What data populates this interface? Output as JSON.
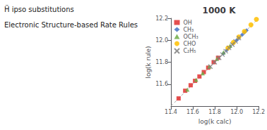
{
  "chart_data": {
    "type": "scatter",
    "title": "1000 K",
    "annotations": [
      "Ḧ ipso substitutions",
      "Electronic Structure-based Rate Rules"
    ],
    "xlabel": "log(k calc)",
    "ylabel": "log(k rule)",
    "xlim": [
      11.4,
      12.2
    ],
    "ylim": [
      11.4,
      12.2
    ],
    "xticks": [
      11.4,
      11.6,
      11.8,
      {
        "value": 12.0,
        "label": "12.0"
      },
      12.2
    ],
    "yticks": [
      11.6,
      11.8,
      {
        "value": 12.0,
        "label": "12.0"
      },
      12.2
    ],
    "grid": false,
    "legend": "upper left",
    "series": [
      {
        "name": "OH",
        "color": "#e03030",
        "marker": "square",
        "x": [
          11.47,
          11.53,
          11.58,
          11.62,
          11.66,
          11.7,
          11.74,
          11.79,
          11.83
        ],
        "values": [
          11.47,
          11.54,
          11.59,
          11.63,
          11.67,
          11.71,
          11.75,
          11.8,
          11.84
        ]
      },
      {
        "name": "CH₃",
        "color": "#4472c4",
        "marker": "diamond",
        "x": [
          11.88,
          11.91,
          11.94,
          11.97,
          12.0,
          12.02,
          12.05,
          12.07,
          12.09
        ],
        "values": [
          11.88,
          11.91,
          11.94,
          11.97,
          12.0,
          12.02,
          12.05,
          12.07,
          12.09
        ]
      },
      {
        "name": "OCH₃",
        "color": "#70ad47",
        "marker": "triangle",
        "x": [
          11.55,
          11.63,
          11.69,
          11.75,
          11.82,
          11.88,
          11.94
        ],
        "values": [
          11.55,
          11.64,
          11.7,
          11.76,
          11.83,
          11.89,
          11.95
        ]
      },
      {
        "name": "CHO",
        "color": "#ffc000",
        "marker": "circle",
        "x": [
          11.92,
          11.97,
          12.02,
          12.07,
          12.13,
          12.18
        ],
        "values": [
          11.93,
          11.98,
          12.03,
          12.08,
          12.14,
          12.19
        ]
      },
      {
        "name": "C₂H₅",
        "color": "#808080",
        "marker": "x",
        "x": [
          11.76,
          11.8,
          11.84,
          11.87,
          11.9,
          11.93,
          11.96,
          11.99,
          12.02
        ],
        "values": [
          11.76,
          11.8,
          11.84,
          11.87,
          11.9,
          11.93,
          11.96,
          11.99,
          12.02
        ]
      }
    ]
  }
}
